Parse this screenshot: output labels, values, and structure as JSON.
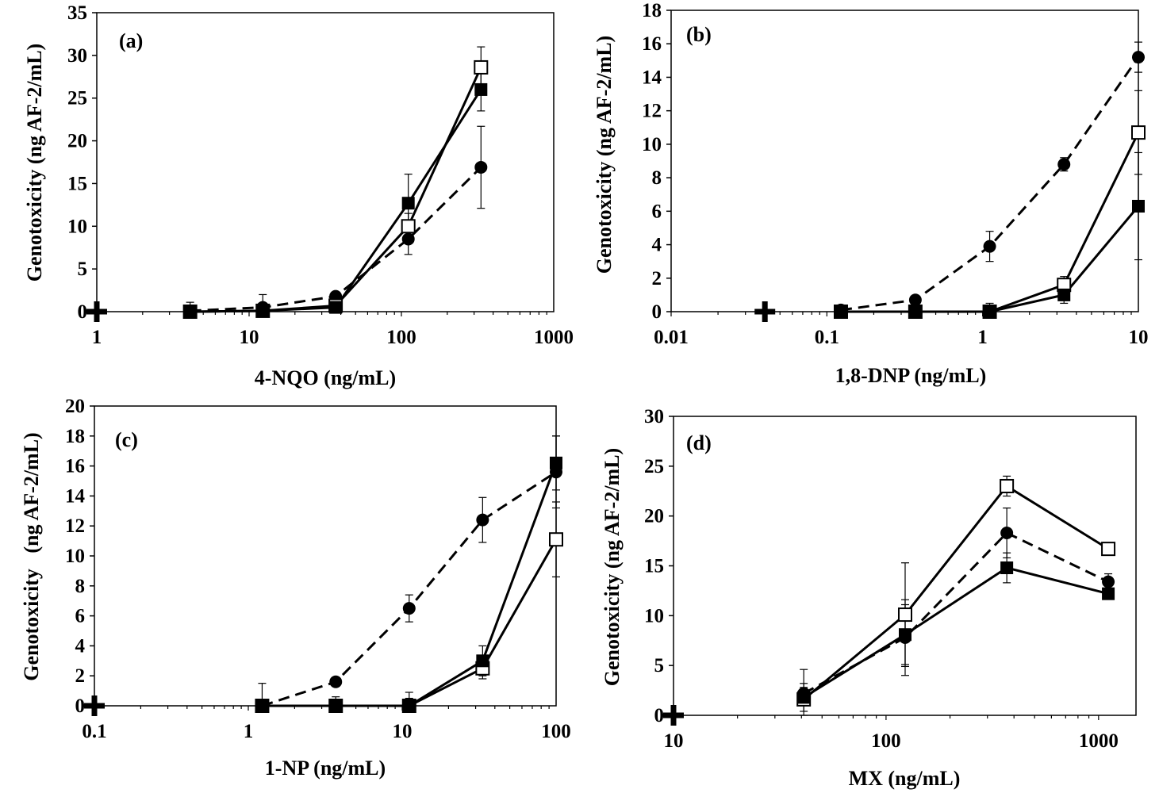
{
  "chart_data": [
    {
      "type": "line",
      "panel_label": "(a)",
      "xlabel": "4-NQO (ng/mL)",
      "ylabel": "Genotoxicity (ng AF-2/mL)",
      "x_scale": "log",
      "xlim": [
        1,
        1000
      ],
      "ylim": [
        0,
        35
      ],
      "x_ticks": [
        1,
        10,
        100,
        1000
      ],
      "x_tick_labels": [
        "1",
        "10",
        "100",
        "1000"
      ],
      "y_ticks": [
        0,
        5,
        10,
        15,
        20,
        25,
        30,
        35
      ],
      "y_tick_labels": [
        "0",
        "5",
        "10",
        "15",
        "20",
        "25",
        "30",
        "35"
      ],
      "x": [
        4.1,
        12.3,
        37,
        111,
        333
      ],
      "series": [
        {
          "name": "filled-circle-dashed",
          "marker": "filled-circle",
          "line": "dashed",
          "values": [
            0.1,
            0.5,
            1.8,
            8.5,
            16.9
          ],
          "errors": [
            1.0,
            1.5,
            0.5,
            1.8,
            4.8
          ]
        },
        {
          "name": "open-square",
          "marker": "open-square",
          "line": "solid",
          "values": [
            0,
            0.1,
            0.7,
            10,
            28.6
          ],
          "errors": [
            0.5,
            0.5,
            0.5,
            1.5,
            2.4
          ]
        },
        {
          "name": "filled-square",
          "marker": "filled-square",
          "line": "solid",
          "values": [
            0,
            0.1,
            0.5,
            12.7,
            26
          ],
          "errors": [
            0.3,
            0.3,
            0.3,
            3.4,
            2.5
          ]
        }
      ],
      "control": {
        "x": 1,
        "y": 0
      }
    },
    {
      "type": "line",
      "panel_label": "(b)",
      "xlabel": "1,8-DNP (ng/mL)",
      "ylabel": "Genotoxicity (ng AF-2/mL)",
      "x_scale": "log",
      "xlim": [
        0.01,
        10
      ],
      "ylim": [
        0,
        18
      ],
      "x_ticks": [
        0.01,
        0.1,
        1,
        10
      ],
      "x_tick_labels": [
        "0.01",
        "0.1",
        "1",
        "10"
      ],
      "y_ticks": [
        0,
        2,
        4,
        6,
        8,
        10,
        12,
        14,
        16,
        18
      ],
      "y_tick_labels": [
        "0",
        "2",
        "4",
        "6",
        "8",
        "10",
        "12",
        "14",
        "16",
        "18"
      ],
      "x": [
        0.123,
        0.37,
        1.11,
        3.33,
        10
      ],
      "series": [
        {
          "name": "filled-circle-dashed",
          "marker": "filled-circle",
          "line": "dashed",
          "values": [
            0.1,
            0.7,
            3.9,
            8.8,
            15.2
          ],
          "errors": [
            0.3,
            0.2,
            0.9,
            0.4,
            0.9
          ]
        },
        {
          "name": "open-square",
          "marker": "open-square",
          "line": "solid",
          "values": [
            0,
            0,
            0,
            1.6,
            10.7
          ],
          "errors": [
            0.2,
            0.2,
            0.5,
            0.5,
            2.5
          ]
        },
        {
          "name": "filled-square",
          "marker": "filled-square",
          "line": "solid",
          "values": [
            0,
            0,
            0,
            1,
            6.3
          ],
          "errors": [
            0.2,
            0.2,
            0.2,
            0.5,
            3.2
          ]
        }
      ],
      "control": {
        "x": 0.04,
        "y": 0
      }
    },
    {
      "type": "line",
      "panel_label": "(c)",
      "xlabel": "1-NP (ng/mL)",
      "ylabel": "Genotoxicity   (ng AF-2/mL)",
      "x_scale": "log",
      "xlim": [
        0.1,
        100
      ],
      "ylim": [
        0,
        20
      ],
      "x_ticks": [
        0.1,
        1,
        10,
        100
      ],
      "x_tick_labels": [
        "0.1",
        "1",
        "10",
        "100"
      ],
      "y_ticks": [
        0,
        2,
        4,
        6,
        8,
        10,
        12,
        14,
        16,
        18,
        20
      ],
      "y_tick_labels": [
        "0",
        "2",
        "4",
        "6",
        "8",
        "10",
        "12",
        "14",
        "16",
        "18",
        "20"
      ],
      "x": [
        1.23,
        3.7,
        11.1,
        33.3,
        100
      ],
      "series": [
        {
          "name": "filled-circle-dashed",
          "marker": "filled-circle",
          "line": "dashed",
          "values": [
            0,
            1.6,
            6.5,
            12.4,
            15.6
          ],
          "errors": [
            1.5,
            0.3,
            0.9,
            1.5,
            2.4
          ]
        },
        {
          "name": "open-square",
          "marker": "open-square",
          "line": "solid",
          "values": [
            0,
            0,
            0,
            2.5,
            11.1
          ],
          "errors": [
            0.3,
            0.3,
            0.5,
            0.7,
            2.5
          ]
        },
        {
          "name": "filled-square",
          "marker": "filled-square",
          "line": "solid",
          "values": [
            0,
            0,
            0,
            3,
            16.2
          ],
          "errors": [
            0.3,
            0.6,
            0.9,
            1.0,
            1.8
          ]
        }
      ],
      "control": {
        "x": 0.1,
        "y": 0
      }
    },
    {
      "type": "line",
      "panel_label": "(d)",
      "xlabel": "MX (ng/mL)",
      "ylabel": "Genotoxicity (ng AF-2/mL)",
      "x_scale": "log",
      "xlim": [
        10,
        1500
      ],
      "ylim": [
        0,
        30
      ],
      "x_ticks": [
        10,
        100,
        1000
      ],
      "x_tick_labels": [
        "10",
        "100",
        "1000"
      ],
      "y_ticks": [
        0,
        5,
        10,
        15,
        20,
        25,
        30
      ],
      "y_tick_labels": [
        "0",
        "5",
        "10",
        "15",
        "20",
        "25",
        "30"
      ],
      "x": [
        41,
        123,
        370,
        1111
      ],
      "series": [
        {
          "name": "filled-circle-dashed",
          "marker": "filled-circle",
          "line": "dashed",
          "values": [
            2.2,
            7.8,
            18.3,
            13.4
          ],
          "errors": [
            1.0,
            3.8,
            2.5,
            0.8
          ]
        },
        {
          "name": "open-square",
          "marker": "open-square",
          "line": "solid",
          "values": [
            1.6,
            10.1,
            23,
            16.7
          ],
          "errors": [
            1.2,
            5.2,
            1.0,
            0.5
          ]
        },
        {
          "name": "filled-square",
          "marker": "filled-square",
          "line": "solid",
          "values": [
            1.8,
            8.1,
            14.8,
            12.2
          ],
          "errors": [
            2.8,
            3.0,
            1.5,
            0.5
          ]
        }
      ],
      "control": {
        "x": 10,
        "y": 0
      }
    }
  ]
}
